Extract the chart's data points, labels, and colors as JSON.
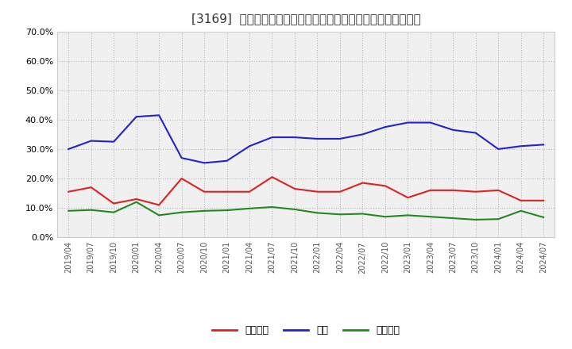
{
  "title": "[3169]  売上債権、在庫、買入債務の総資産に対する比率の推移",
  "x_labels": [
    "2019/04",
    "2019/07",
    "2019/10",
    "2020/01",
    "2020/04",
    "2020/07",
    "2020/10",
    "2021/01",
    "2021/04",
    "2021/07",
    "2021/10",
    "2022/01",
    "2022/04",
    "2022/07",
    "2022/10",
    "2023/01",
    "2023/04",
    "2023/07",
    "2023/10",
    "2024/01",
    "2024/04",
    "2024/07"
  ],
  "uriken": [
    0.155,
    0.17,
    0.115,
    0.13,
    0.11,
    0.2,
    0.155,
    0.155,
    0.155,
    0.205,
    0.165,
    0.155,
    0.155,
    0.185,
    0.175,
    0.135,
    0.16,
    0.16,
    0.155,
    0.16,
    0.125,
    0.125
  ],
  "zaiko": [
    0.3,
    0.328,
    0.325,
    0.41,
    0.415,
    0.27,
    0.253,
    0.26,
    0.31,
    0.34,
    0.34,
    0.335,
    0.335,
    0.35,
    0.375,
    0.39,
    0.39,
    0.365,
    0.355,
    0.3,
    0.31,
    0.315
  ],
  "kaiire": [
    0.09,
    0.093,
    0.085,
    0.12,
    0.075,
    0.085,
    0.09,
    0.092,
    0.098,
    0.103,
    0.095,
    0.083,
    0.078,
    0.08,
    0.07,
    0.075,
    0.07,
    0.065,
    0.06,
    0.062,
    0.09,
    0.068
  ],
  "uriken_color": "#dd2222",
  "zaiko_color": "#2222cc",
  "kaiire_color": "#228822",
  "ylim": [
    0.0,
    0.7
  ],
  "yticks": [
    0.0,
    0.1,
    0.2,
    0.3,
    0.4,
    0.5,
    0.6,
    0.7
  ],
  "legend_labels": [
    "売上債権",
    "在庫",
    "買入債務"
  ],
  "bg_color": "#ffffff",
  "plot_bg_color": "#f0f0f0",
  "grid_color": "#bbbbbb",
  "title_color": "#333333",
  "tick_color": "#555555"
}
